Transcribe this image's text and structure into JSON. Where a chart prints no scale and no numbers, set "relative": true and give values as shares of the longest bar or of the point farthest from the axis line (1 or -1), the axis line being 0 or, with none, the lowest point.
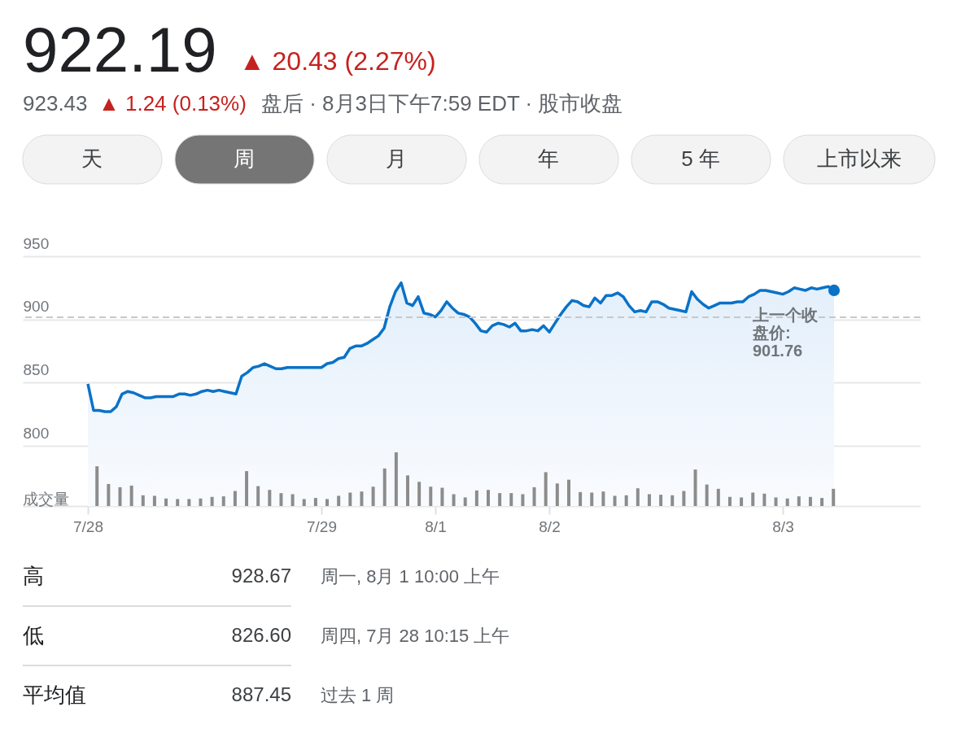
{
  "chart_data": [
    {
      "type": "other",
      "title": "922.19",
      "subtitle": "▲ 20.43 (2.27%)",
      "annotations": [
        "923.43",
        "▲ 1.24 (0.13%)",
        "盘后 · 8月3日下午7:59 EDT · 股市收盘",
        "天",
        "周",
        "月",
        "年",
        "5 年",
        "上市以来"
      ]
    },
    {
      "type": "area",
      "categories": [
        "7/28",
        null,
        null,
        null,
        null,
        null,
        null,
        null,
        null,
        null,
        null,
        null,
        null,
        null,
        null,
        null,
        null,
        null,
        null,
        null,
        null,
        null,
        null,
        null,
        null,
        null,
        null,
        null,
        null,
        null,
        null,
        null,
        null,
        null,
        null,
        null,
        null,
        null,
        null,
        null,
        null,
        "7/29",
        null,
        null,
        null,
        null,
        null,
        null,
        null,
        null,
        null,
        null,
        null,
        null,
        null,
        null,
        null,
        null,
        null,
        null,
        null,
        "8/1",
        null,
        null,
        null,
        null,
        null,
        null,
        null,
        null,
        null,
        null,
        null,
        null,
        null,
        null,
        null,
        null,
        null,
        null,
        null,
        "8/2",
        null,
        null,
        null,
        null,
        null,
        null,
        null,
        null,
        null,
        null,
        null,
        null,
        null,
        null,
        null,
        null,
        null,
        null,
        null,
        null,
        null,
        null,
        null,
        null,
        null,
        null,
        null,
        null,
        null,
        null,
        null,
        null,
        null,
        null,
        null,
        null,
        null,
        null,
        null,
        null,
        "8/3",
        null,
        null,
        null,
        null,
        null,
        null,
        null,
        null,
        null
      ],
      "series": [
        {
          "color": "#0a72c8",
          "values": [
            849,
            828,
            828,
            827,
            827,
            831,
            841,
            843,
            842,
            840,
            838,
            838,
            839,
            839,
            839,
            839,
            841,
            841,
            840,
            841,
            843,
            844,
            843,
            844,
            843,
            842,
            841,
            855,
            858,
            862,
            863,
            865,
            863,
            861,
            861,
            862,
            862,
            862,
            862,
            862,
            862,
            862,
            865,
            866,
            869,
            870,
            877,
            879,
            879,
            881,
            884,
            887,
            893,
            910,
            922,
            929,
            913,
            911,
            918,
            905,
            904,
            902,
            907,
            914,
            909,
            905,
            904,
            902,
            897,
            891,
            890,
            895,
            897,
            896,
            894,
            897,
            891,
            891,
            892,
            891,
            895,
            890,
            897,
            904,
            910,
            915,
            914,
            911,
            910,
            917,
            913,
            919,
            919,
            921,
            918,
            911,
            906,
            907,
            906,
            914,
            914,
            912,
            909,
            908,
            907,
            906,
            922,
            916,
            912,
            909,
            911,
            913,
            913,
            913,
            914,
            914,
            918,
            920,
            923,
            923,
            922,
            921,
            920,
            922,
            925,
            924,
            923,
            925,
            924,
            925,
            926,
            923
          ]
        }
      ],
      "ylim": [
        800,
        950
      ],
      "yticks": [
        800,
        850,
        900,
        950
      ],
      "ref_lines": [
        {
          "axis": "y",
          "value": 901.76,
          "label": "上一个收盘价: 901.76",
          "color": "#c8c8c8",
          "line_style": "dashed"
        }
      ],
      "grid": "y"
    },
    {
      "type": "bar",
      "relative": true,
      "ylabel": "成交量",
      "color": "#8c8c8c",
      "categories": [
        null,
        null,
        null,
        null,
        null,
        null,
        null,
        null,
        null,
        null,
        null,
        null,
        null,
        null,
        null,
        null,
        null,
        null,
        null,
        null,
        null,
        null,
        null,
        null,
        null,
        null,
        null,
        null,
        null,
        null,
        null,
        null,
        null,
        null,
        null,
        null,
        null,
        null,
        null,
        null,
        null,
        null,
        null,
        null,
        null,
        null,
        null,
        null,
        null,
        null,
        null,
        null,
        null,
        null,
        null,
        null,
        null,
        null,
        null,
        null,
        null,
        null,
        null,
        null,
        null
      ],
      "values": [
        0.74,
        0.41,
        0.35,
        0.38,
        0.2,
        0.19,
        0.14,
        0.13,
        0.13,
        0.14,
        0.17,
        0.18,
        0.28,
        0.65,
        0.37,
        0.3,
        0.24,
        0.22,
        0.13,
        0.15,
        0.13,
        0.19,
        0.25,
        0.27,
        0.36,
        0.7,
        1,
        0.57,
        0.45,
        0.36,
        0.34,
        0.22,
        0.16,
        0.29,
        0.3,
        0.24,
        0.24,
        0.22,
        0.35,
        0.63,
        0.42,
        0.49,
        0.26,
        0.25,
        0.27,
        0.19,
        0.2,
        0.33,
        0.22,
        0.21,
        0.2,
        0.28,
        0.68,
        0.4,
        0.32,
        0.17,
        0.16,
        0.25,
        0.23,
        0.16,
        0.14,
        0.18,
        0.17,
        0.15,
        0.32
      ]
    },
    {
      "type": "other",
      "annotations": [
        "高",
        "928.67",
        "周一, 8月 1 10:00 上午",
        "低",
        "826.60",
        "周四, 7月 28 10:15 上午",
        "平均值",
        "887.45",
        "过去 1 周"
      ]
    }
  ]
}
